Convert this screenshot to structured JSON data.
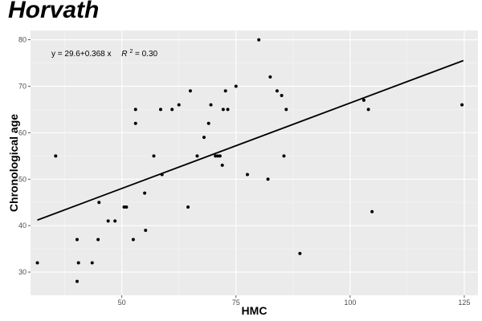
{
  "chart_data": {
    "type": "scatter",
    "title": "Horvath",
    "xlabel": "HMC",
    "ylabel": "Chronological age",
    "xlim": [
      30,
      128
    ],
    "ylim": [
      25,
      82
    ],
    "xticks": [
      50,
      75,
      100,
      125
    ],
    "yticks": [
      30,
      40,
      50,
      60,
      70,
      80
    ],
    "grid": true,
    "background": "#ebebeb",
    "regression": {
      "intercept": 29.6,
      "slope": 0.368,
      "x_range": [
        31.5,
        124.8
      ],
      "equation": "y = 29.6+0.368 x",
      "r2_prefix": "R",
      "r2_value": " = 0.30"
    },
    "points": [
      [
        31.5,
        32
      ],
      [
        35.5,
        55
      ],
      [
        40.2,
        37
      ],
      [
        40.5,
        32
      ],
      [
        40.2,
        28
      ],
      [
        43.5,
        32
      ],
      [
        44.8,
        37
      ],
      [
        45.0,
        45
      ],
      [
        47.0,
        41
      ],
      [
        48.5,
        41
      ],
      [
        50.5,
        44
      ],
      [
        51.0,
        44
      ],
      [
        52.5,
        37
      ],
      [
        53.0,
        65
      ],
      [
        53.0,
        62
      ],
      [
        55.0,
        47
      ],
      [
        55.2,
        39
      ],
      [
        57.0,
        55
      ],
      [
        58.5,
        65
      ],
      [
        58.8,
        51
      ],
      [
        61.0,
        65
      ],
      [
        62.5,
        66
      ],
      [
        64.5,
        44
      ],
      [
        65.0,
        69
      ],
      [
        66.5,
        55
      ],
      [
        68.0,
        59
      ],
      [
        69.0,
        62
      ],
      [
        69.5,
        66
      ],
      [
        70.5,
        55
      ],
      [
        71.0,
        55
      ],
      [
        71.5,
        55
      ],
      [
        72.0,
        53
      ],
      [
        72.2,
        65
      ],
      [
        72.7,
        69
      ],
      [
        73.2,
        65
      ],
      [
        75.0,
        70
      ],
      [
        77.5,
        51
      ],
      [
        80.0,
        80
      ],
      [
        82.0,
        50
      ],
      [
        82.5,
        72
      ],
      [
        84.0,
        69
      ],
      [
        85.0,
        68
      ],
      [
        85.5,
        55
      ],
      [
        86.0,
        65
      ],
      [
        89.0,
        34
      ],
      [
        103.0,
        67
      ],
      [
        104.0,
        65
      ],
      [
        104.8,
        43
      ],
      [
        124.5,
        66
      ]
    ]
  }
}
